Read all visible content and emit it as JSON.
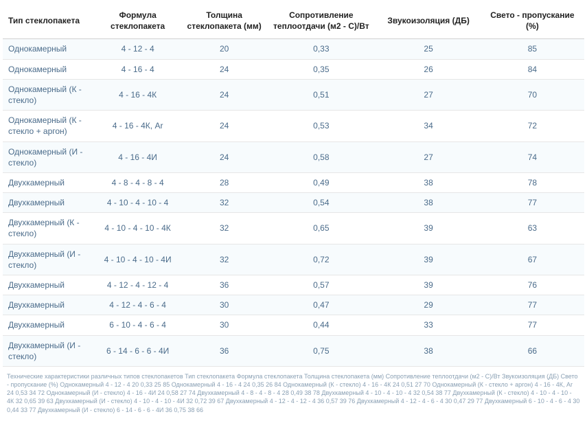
{
  "table": {
    "columns": [
      "Тип стеклопакета",
      "Формула стеклопакета",
      "Толщина стеклопакета (мм)",
      "Сопротивление теплоотдачи (м2 - С)/Вт",
      "Звукоизоляция (ДБ)",
      "Свето - пропускание (%)"
    ],
    "rows": [
      {
        "type": "Однокамерный",
        "formula": "4 - 12 - 4",
        "thickness": "20",
        "resistance": "0,33",
        "sound": "25",
        "light": "85"
      },
      {
        "type": "Однокамерный",
        "formula": "4 - 16 - 4",
        "thickness": "24",
        "resistance": "0,35",
        "sound": "26",
        "light": "84"
      },
      {
        "type": "Однокамерный (К - стекло)",
        "formula": "4 - 16 - 4К",
        "thickness": "24",
        "resistance": "0,51",
        "sound": "27",
        "light": "70"
      },
      {
        "type": "Однокамерный (К - стекло + аргон)",
        "formula": "4 - 16 - 4К, Ar",
        "thickness": "24",
        "resistance": "0,53",
        "sound": "34",
        "light": "72"
      },
      {
        "type": "Однокамерный (И - стекло)",
        "formula": "4 - 16 - 4И",
        "thickness": "24",
        "resistance": "0,58",
        "sound": "27",
        "light": "74"
      },
      {
        "type": "Двухкамерный",
        "formula": "4 - 8 - 4 - 8 - 4",
        "thickness": "28",
        "resistance": "0,49",
        "sound": "38",
        "light": "78"
      },
      {
        "type": "Двухкамерный",
        "formula": "4 - 10 - 4 - 10 - 4",
        "thickness": "32",
        "resistance": "0,54",
        "sound": "38",
        "light": "77"
      },
      {
        "type": "Двухкамерный (К - стекло)",
        "formula": "4 - 10 - 4 - 10 - 4К",
        "thickness": "32",
        "resistance": "0,65",
        "sound": "39",
        "light": "63"
      },
      {
        "type": "Двухкамерный (И - стекло)",
        "formula": "4 - 10 - 4 - 10 - 4И",
        "thickness": "32",
        "resistance": "0,72",
        "sound": "39",
        "light": "67"
      },
      {
        "type": "Двухкамерный",
        "formula": "4 - 12 - 4 - 12 - 4",
        "thickness": "36",
        "resistance": "0,57",
        "sound": "39",
        "light": "76"
      },
      {
        "type": "Двухкамерный",
        "formula": "4 - 12 - 4 - 6 - 4",
        "thickness": "30",
        "resistance": "0,47",
        "sound": "29",
        "light": "77"
      },
      {
        "type": "Двухкамерный",
        "formula": "6 - 10 - 4 - 6 - 4",
        "thickness": "30",
        "resistance": "0,44",
        "sound": "33",
        "light": "77"
      },
      {
        "type": "Двухкамерный (И - стекло)",
        "formula": "6 - 14 - 6 - 6 - 4И",
        "thickness": "36",
        "resistance": "0,75",
        "sound": "38",
        "light": "66"
      }
    ],
    "header_bg": "#ffffff",
    "row_alt_bg": "#f7fbfd",
    "row_bg": "#ffffff",
    "cell_text_color": "#4a6b8a",
    "header_text_color": "#222222",
    "border_color": "#e6e6e6",
    "font_size_body": 12,
    "font_size_footer": 9
  },
  "footnote": "Технические характеристики различных типов стеклопакетов Тип стеклопакета Формула стеклопакета Толщина стеклопакета (мм) Сопротивление теплоотдачи (м2 - С)/Вт Звукоизоляция (ДБ) Свето - пропускание (%) Однокамерный 4 - 12 - 4 20 0,33 25 85 Однокамерный 4 - 16 - 4 24 0,35 26 84 Однокамерный (К - стекло) 4 - 16 - 4К 24 0,51 27 70 Однокамерный (К - стекло + аргон) 4 - 16 - 4К, Ar 24 0,53 34 72 Однокамерный (И - стекло) 4 - 16 - 4И 24 0,58 27 74 Двухкамерный 4 - 8 - 4 - 8 - 4 28 0,49 38 78 Двухкамерный 4 - 10 - 4 - 10 - 4 32 0,54 38 77 Двухкамерный (К - стекло) 4 - 10 - 4 - 10 - 4К 32 0,65 39 63 Двухкамерный (И - стекло) 4 - 10 - 4 - 10 - 4И 32 0,72 39 67 Двухкамерный 4 - 12 - 4 - 12 - 4 36 0,57 39 76 Двухкамерный 4 - 12 - 4 - 6 - 4 30 0,47 29 77 Двухкамерный 6 - 10 - 4 - 6 - 4 30 0,44 33 77 Двухкамерный (И - стекло) 6 - 14 - 6 - 6 - 4И 36 0,75 38 66"
}
